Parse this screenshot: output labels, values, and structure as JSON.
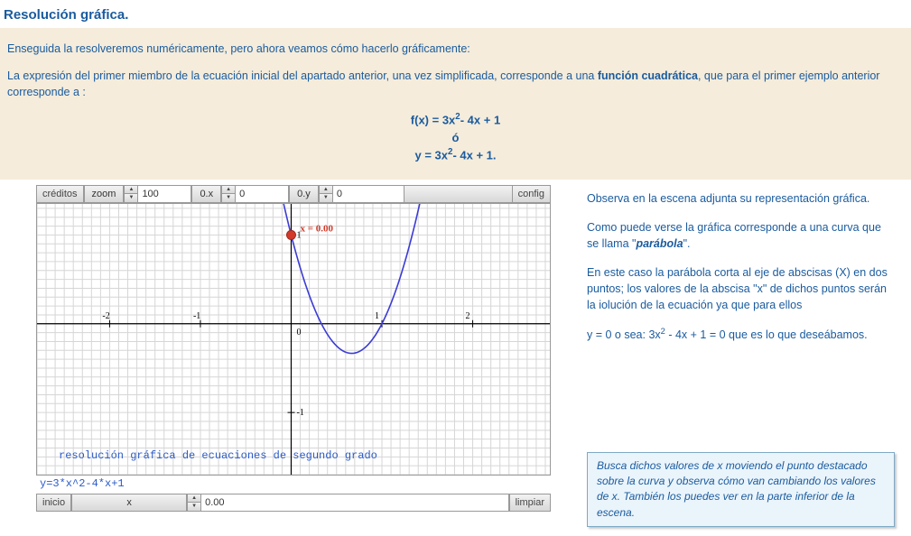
{
  "title": "Resolución gráfica.",
  "intro": {
    "p1": "Enseguida la resolveremos numéricamente, pero ahora veamos cómo hacerlo gráficamente:",
    "p2a": "La expresión del primer miembro de la ecuación inicial del apartado anterior, una vez simplificada, corresponde a una ",
    "p2b": "función cuadrática",
    "p2c": ", que para el primer ejemplo anterior corresponde a :"
  },
  "formula": {
    "line1_prefix": "f(x) = 3x",
    "line1_suffix": "- 4x + 1",
    "line2": "ó",
    "line3_prefix": "y = 3x",
    "line3_suffix": "- 4x + 1",
    "exp": "2",
    "period": "."
  },
  "right": {
    "p1": "Observa en la escena adjunta su representación gráfica.",
    "p2a": "Como puede verse la gráfica corresponde a una curva que se llama \"",
    "p2b": "parábola",
    "p2c": "\".",
    "p3": "En este caso la parábola corta al eje de abscisas (X) en dos puntos; los valores de la abscisa \"x\" de dichos puntos serán la iolución de la ecuación ya que para ellos",
    "p4a": "y = 0 o sea: 3x",
    "p4b": " - 4x + 1 = 0 que es lo que deseábamos.",
    "exp": "2"
  },
  "infobox": "Busca dichos valores de x moviendo el punto destacado sobre la curva y observa cómo van cambiando los valores de x. También los puedes ver en la parte inferior de la escena.",
  "applet": {
    "creditos": "créditos",
    "zoom_label": "zoom",
    "zoom_val": "100",
    "ox_label": "0.x",
    "ox_val": "0",
    "oy_label": "0.y",
    "oy_val": "0",
    "config": "config",
    "inicio": "inicio",
    "x_label": "x",
    "x_val": "0.00",
    "limpiar": "limpiar",
    "eq_text": "y=3*x^2-4*x+1",
    "caption": "resolución gráfica de ecuaciones de segundo grado",
    "marker_label": "x = 0.00",
    "plot": {
      "a": 3,
      "b": -4,
      "c": 1,
      "xmin": -2.8,
      "xmax": 2.85,
      "ymin": -1.7,
      "ymax": 1.35,
      "x_ticks": [
        -2,
        -1,
        1,
        2
      ],
      "y_ticks": [
        -1,
        1
      ],
      "marker_x": 0,
      "curve_color": "#3b3bd6",
      "marker_color": "#d23a2b",
      "grid_color": "#d6d6d6",
      "caption_color": "#2a5bc9"
    }
  }
}
